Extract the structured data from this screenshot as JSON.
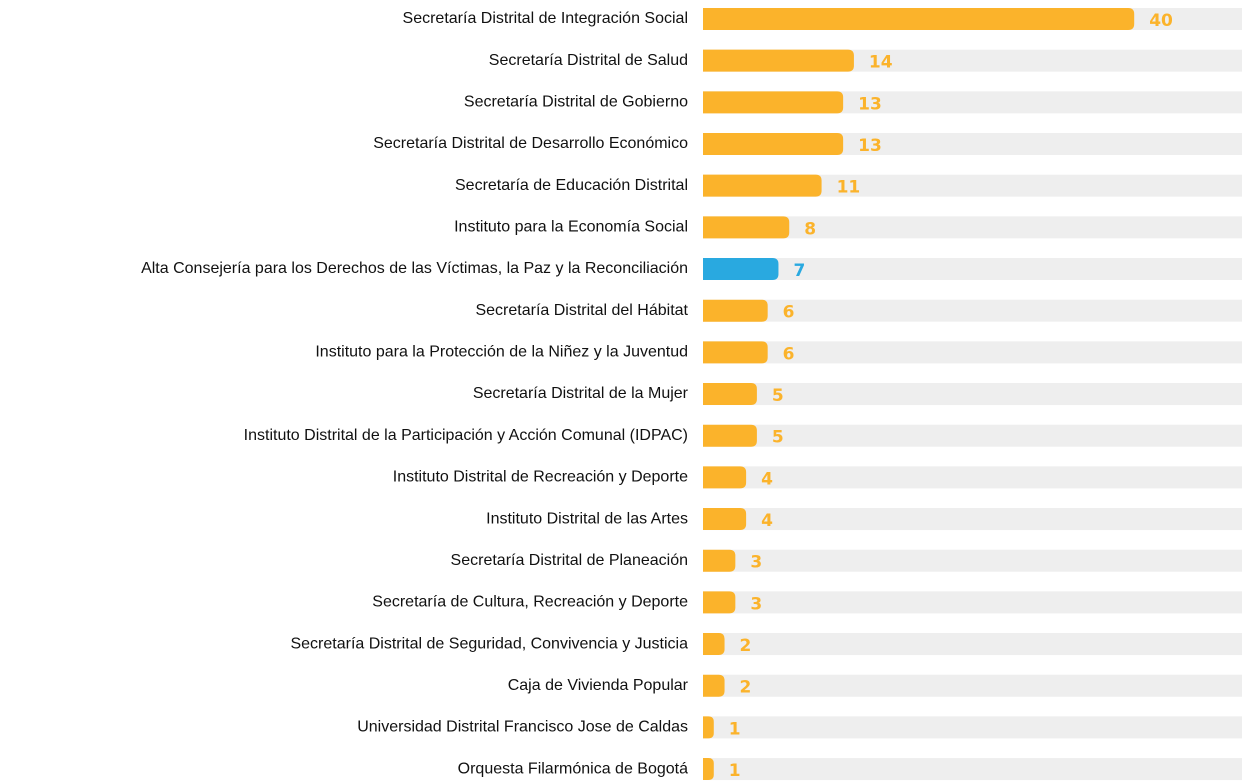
{
  "chart_data": {
    "type": "bar",
    "orientation": "horizontal",
    "categories": [
      "Secretaría Distrital de Integración Social",
      "Secretaría Distrital de Salud",
      "Secretaría Distrital de Gobierno",
      "Secretaría Distrital de Desarrollo Económico",
      "Secretaría de Educación Distrital",
      "Instituto para la Economía Social",
      "Alta Consejería para los Derechos de las Víctimas, la Paz y la Reconciliación",
      "Secretaría Distrital del Hábitat",
      "Instituto para la Protección de la Niñez y la Juventud",
      "Secretaría Distrital de la Mujer",
      "Instituto Distrital de la Participación y Acción Comunal (IDPAC)",
      "Instituto Distrital de Recreación y Deporte",
      "Instituto Distrital de las Artes",
      "Secretaría Distrital de Planeación",
      "Secretaría de Cultura, Recreación y Deporte",
      "Secretaría Distrital de Seguridad, Convivencia y Justicia",
      "Caja de Vivienda Popular",
      "Universidad Distrital Francisco Jose de Caldas",
      "Orquesta Filarmónica de Bogotá"
    ],
    "values": [
      40,
      14,
      13,
      13,
      11,
      8,
      7,
      6,
      6,
      5,
      5,
      4,
      4,
      3,
      3,
      2,
      2,
      1,
      1
    ],
    "colors": [
      "#fbb32b",
      "#fbb32b",
      "#fbb32b",
      "#fbb32b",
      "#fbb32b",
      "#fbb32b",
      "#29a9e0",
      "#fbb32b",
      "#fbb32b",
      "#fbb32b",
      "#fbb32b",
      "#fbb32b",
      "#fbb32b",
      "#fbb32b",
      "#fbb32b",
      "#fbb32b",
      "#fbb32b",
      "#fbb32b",
      "#fbb32b"
    ],
    "track_color": "#eeeeee",
    "xlim": [
      0,
      50
    ]
  }
}
